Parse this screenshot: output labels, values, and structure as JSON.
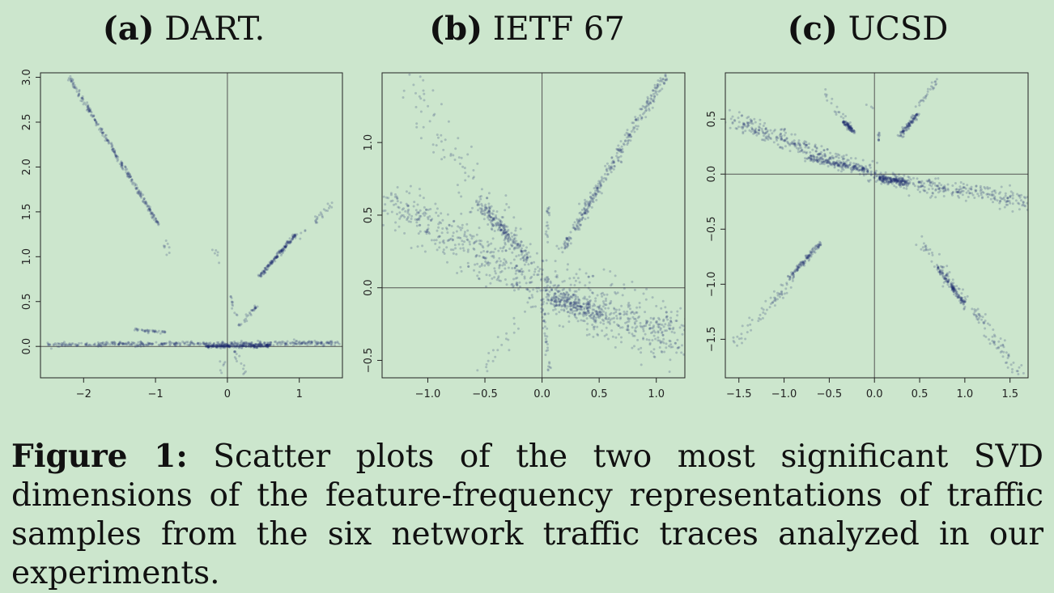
{
  "chart_data": [
    {
      "type": "scatter",
      "panel_label": "(a)",
      "title": "DART.",
      "xlim": [
        -2.6,
        1.6
      ],
      "ylim": [
        -0.35,
        3.05
      ],
      "xticks": [
        -2,
        -1,
        0,
        1
      ],
      "xtick_labels": [
        "−2",
        "−1",
        "0",
        "1"
      ],
      "yticks": [
        0.0,
        0.5,
        1.0,
        1.5,
        2.0,
        2.5,
        3.0
      ],
      "ytick_labels": [
        "0.0",
        "0.5",
        "1.0",
        "1.5",
        "2.0",
        "2.5",
        "3.0"
      ],
      "reference_lines": {
        "x": 0,
        "y": 0
      },
      "point_color": "#1a2a6e",
      "clusters": [
        {
          "shape": "segment",
          "from": [
            -2.2,
            3.0
          ],
          "to": [
            -0.95,
            1.35
          ],
          "n": 260,
          "spread": 0.012
        },
        {
          "shape": "segment",
          "from": [
            -0.9,
            1.2
          ],
          "to": [
            -0.8,
            1.05
          ],
          "n": 8,
          "spread": 0.02
        },
        {
          "shape": "segment",
          "from": [
            0.45,
            0.78
          ],
          "to": [
            0.95,
            1.25
          ],
          "n": 170,
          "spread": 0.012
        },
        {
          "shape": "segment",
          "from": [
            0.15,
            0.22
          ],
          "to": [
            0.4,
            0.45
          ],
          "n": 30,
          "spread": 0.012
        },
        {
          "shape": "segment",
          "from": [
            1.0,
            1.2
          ],
          "to": [
            1.45,
            1.6
          ],
          "n": 25,
          "spread": 0.02
        },
        {
          "shape": "segment",
          "from": [
            -1.3,
            0.19
          ],
          "to": [
            -0.85,
            0.16
          ],
          "n": 40,
          "spread": 0.01
        },
        {
          "shape": "segment",
          "from": [
            -2.5,
            0.02
          ],
          "to": [
            1.55,
            0.04
          ],
          "n": 420,
          "spread": 0.012
        },
        {
          "shape": "segment",
          "from": [
            -0.3,
            0.0
          ],
          "to": [
            0.6,
            0.01
          ],
          "n": 260,
          "spread": 0.01
        },
        {
          "shape": "segment",
          "from": [
            0.05,
            0.55
          ],
          "to": [
            0.1,
            0.35
          ],
          "n": 12,
          "spread": 0.02
        },
        {
          "shape": "segment",
          "from": [
            0.1,
            -0.05
          ],
          "to": [
            0.25,
            -0.3
          ],
          "n": 15,
          "spread": 0.02
        },
        {
          "shape": "segment",
          "from": [
            -0.2,
            1.1
          ],
          "to": [
            -0.1,
            0.95
          ],
          "n": 6,
          "spread": 0.02
        },
        {
          "shape": "segment",
          "from": [
            -0.1,
            -0.3
          ],
          "to": [
            -0.05,
            -0.1
          ],
          "n": 6,
          "spread": 0.02
        }
      ]
    },
    {
      "type": "scatter",
      "panel_label": "(b)",
      "title": "IETF 67",
      "xlim": [
        -1.4,
        1.25
      ],
      "ylim": [
        -0.62,
        1.48
      ],
      "xticks": [
        -1.0,
        -0.5,
        0.0,
        0.5,
        1.0
      ],
      "xtick_labels": [
        "−1.0",
        "−0.5",
        "0.0",
        "0.5",
        "1.0"
      ],
      "yticks": [
        -0.5,
        0.0,
        0.5,
        1.0
      ],
      "ytick_labels": [
        "−0.5",
        "0.0",
        "0.5",
        "1.0"
      ],
      "reference_lines": {
        "x": 0,
        "y": 0
      },
      "point_color": "#1a2a6e",
      "clusters": [
        {
          "shape": "segment",
          "from": [
            0.17,
            0.25
          ],
          "to": [
            1.08,
            1.47
          ],
          "n": 330,
          "spread": 0.018
        },
        {
          "shape": "segment",
          "from": [
            -0.55,
            0.58
          ],
          "to": [
            -0.12,
            0.2
          ],
          "n": 200,
          "spread": 0.02
        },
        {
          "shape": "segment",
          "from": [
            -1.2,
            1.45
          ],
          "to": [
            -0.1,
            0.1
          ],
          "n": 120,
          "spread": 0.08
        },
        {
          "shape": "segment",
          "from": [
            -1.35,
            0.6
          ],
          "to": [
            0.0,
            0.0
          ],
          "n": 380,
          "spread": 0.08
        },
        {
          "shape": "segment",
          "from": [
            0.0,
            0.0
          ],
          "to": [
            1.2,
            -0.35
          ],
          "n": 480,
          "spread": 0.09
        },
        {
          "shape": "segment",
          "from": [
            0.05,
            -0.05
          ],
          "to": [
            0.55,
            -0.2
          ],
          "n": 200,
          "spread": 0.03
        },
        {
          "shape": "segment",
          "from": [
            0.05,
            0.55
          ],
          "to": [
            0.05,
            0.3
          ],
          "n": 18,
          "spread": 0.008
        },
        {
          "shape": "segment",
          "from": [
            0.0,
            -0.1
          ],
          "to": [
            0.07,
            -0.6
          ],
          "n": 40,
          "spread": 0.015
        },
        {
          "shape": "segment",
          "from": [
            -0.5,
            -0.6
          ],
          "to": [
            -0.2,
            -0.2
          ],
          "n": 20,
          "spread": 0.03
        }
      ]
    },
    {
      "type": "scatter",
      "panel_label": "(c)",
      "title": "UCSD",
      "xlim": [
        -1.65,
        1.7
      ],
      "ylim": [
        -1.85,
        0.92
      ],
      "xticks": [
        -1.5,
        -1.0,
        -0.5,
        0.0,
        0.5,
        1.0,
        1.5
      ],
      "xtick_labels": [
        "−1.5",
        "−1.0",
        "−0.5",
        "0.0",
        "0.5",
        "1.0",
        "1.5"
      ],
      "yticks": [
        -1.5,
        -1.0,
        -0.5,
        0.0,
        0.5
      ],
      "ytick_labels": [
        "−1.5",
        "−1.0",
        "−0.5",
        "0.0",
        "0.5"
      ],
      "reference_lines": {
        "x": 0,
        "y": 0
      },
      "point_color": "#1a2a6e",
      "clusters": [
        {
          "shape": "segment",
          "from": [
            -1.6,
            0.5
          ],
          "to": [
            0.0,
            0.0
          ],
          "n": 320,
          "spread": 0.04
        },
        {
          "shape": "segment",
          "from": [
            -0.75,
            0.15
          ],
          "to": [
            -0.05,
            0.03
          ],
          "n": 160,
          "spread": 0.015
        },
        {
          "shape": "segment",
          "from": [
            0.0,
            -0.03
          ],
          "to": [
            1.7,
            -0.25
          ],
          "n": 300,
          "spread": 0.04
        },
        {
          "shape": "segment",
          "from": [
            0.05,
            -0.03
          ],
          "to": [
            0.35,
            -0.08
          ],
          "n": 160,
          "spread": 0.015
        },
        {
          "shape": "segment",
          "from": [
            -0.35,
            0.48
          ],
          "to": [
            -0.22,
            0.38
          ],
          "n": 80,
          "spread": 0.01
        },
        {
          "shape": "segment",
          "from": [
            -0.55,
            0.75
          ],
          "to": [
            -0.22,
            0.35
          ],
          "n": 25,
          "spread": 0.02
        },
        {
          "shape": "segment",
          "from": [
            0.28,
            0.35
          ],
          "to": [
            0.48,
            0.55
          ],
          "n": 100,
          "spread": 0.012
        },
        {
          "shape": "segment",
          "from": [
            0.45,
            0.6
          ],
          "to": [
            0.7,
            0.85
          ],
          "n": 25,
          "spread": 0.015
        },
        {
          "shape": "segment",
          "from": [
            0.05,
            0.3
          ],
          "to": [
            0.05,
            0.38
          ],
          "n": 10,
          "spread": 0.005
        },
        {
          "shape": "segment",
          "from": [
            -0.6,
            -0.63
          ],
          "to": [
            -0.95,
            -0.95
          ],
          "n": 120,
          "spread": 0.012
        },
        {
          "shape": "segment",
          "from": [
            -1.55,
            -1.55
          ],
          "to": [
            -0.9,
            -0.95
          ],
          "n": 60,
          "spread": 0.03
        },
        {
          "shape": "segment",
          "from": [
            0.7,
            -0.85
          ],
          "to": [
            1.0,
            -1.18
          ],
          "n": 120,
          "spread": 0.012
        },
        {
          "shape": "segment",
          "from": [
            0.5,
            -0.6
          ],
          "to": [
            1.6,
            -1.8
          ],
          "n": 140,
          "spread": 0.03
        },
        {
          "shape": "segment",
          "from": [
            -0.05,
            0.6
          ],
          "to": [
            -0.05,
            0.6
          ],
          "n": 3,
          "spread": 0.02
        }
      ]
    }
  ],
  "caption": {
    "label": "Figure 1:",
    "text": "Scatter plots of the two most significant SVD dimensions of the feature-frequency representations of traffic samples from the six network traffic traces analyzed in our experiments."
  }
}
